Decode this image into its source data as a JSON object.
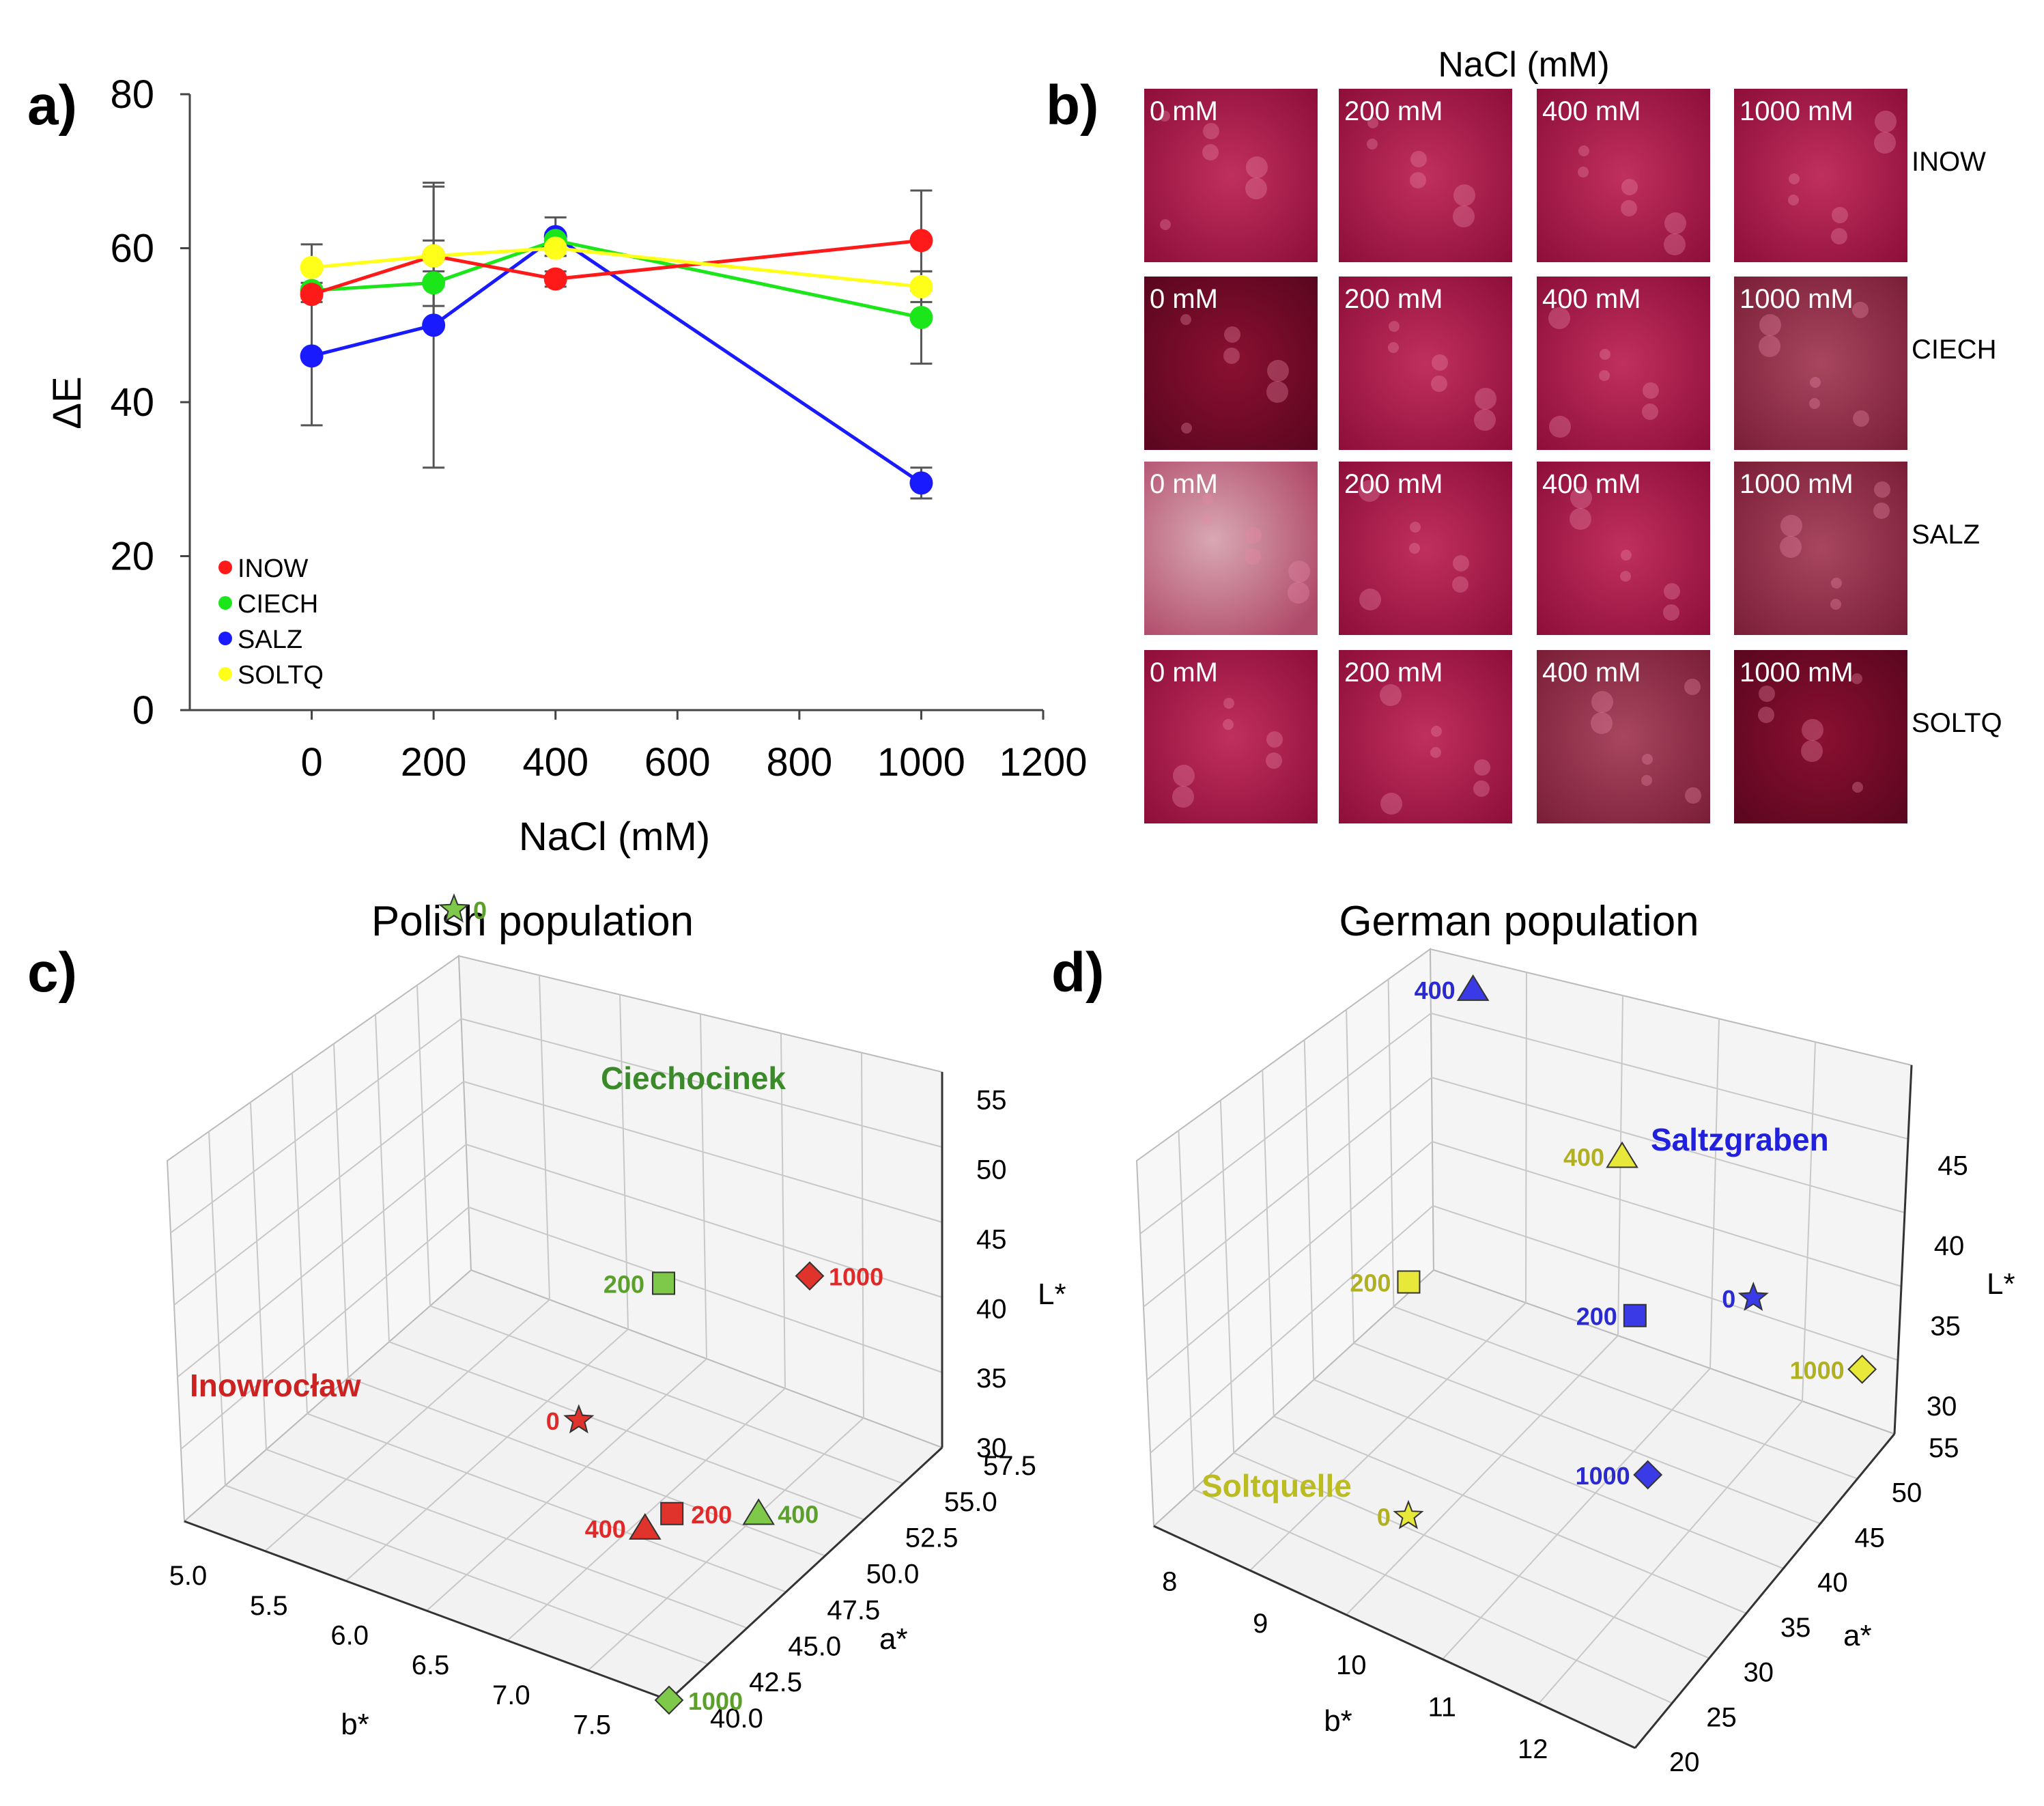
{
  "colors": {
    "INOW": "#ff1a1a",
    "CIECH": "#1ae61a",
    "SALZ": "#1a1aff",
    "SOLTQ": "#ffff1a",
    "tile_base": "#a8144a",
    "tile_light": "#d04a7a",
    "polish_red": "#e0332b",
    "polish_green": "#7ec84a",
    "german_blue": "#3a3ae6",
    "german_yellow": "#e8e83a"
  },
  "panels": {
    "a": {
      "label": "a)"
    },
    "b": {
      "label": "b)",
      "header": "NaCl (mM)",
      "columns": [
        "0 mM",
        "200 mM",
        "400 mM",
        "1000 mM"
      ],
      "rows": [
        "INOW",
        "CIECH",
        "SALZ",
        "SOLTQ"
      ]
    },
    "c": {
      "label": "c)"
    },
    "d": {
      "label": "d)"
    }
  },
  "chart_data": [
    {
      "id": "a",
      "type": "line",
      "title": "",
      "xlabel": "NaCl (mM)",
      "ylabel": "ΔE",
      "xlim": [
        -200,
        1200
      ],
      "ylim": [
        0,
        80
      ],
      "xticks": [
        "0",
        "200",
        "400",
        "600",
        "800",
        "1000",
        "1200"
      ],
      "yticks": [
        "0",
        "20",
        "40",
        "60",
        "80"
      ],
      "x": [
        0,
        200,
        400,
        1000
      ],
      "legend_position": "bottom-left",
      "series": [
        {
          "name": "INOW",
          "values": [
            54,
            59,
            56,
            61
          ],
          "errors": [
            1,
            2,
            1,
            6.5
          ]
        },
        {
          "name": "CIECH",
          "values": [
            54.5,
            55.5,
            61,
            51
          ],
          "errors": [
            1,
            3,
            1,
            6
          ]
        },
        {
          "name": "SALZ",
          "values": [
            46,
            50,
            61.5,
            29.5
          ],
          "errors": [
            9,
            18.5,
            2.5,
            2
          ]
        },
        {
          "name": "SOLTQ",
          "values": [
            57.5,
            59,
            60,
            55
          ],
          "errors": [
            3,
            9,
            1,
            2
          ]
        }
      ]
    },
    {
      "id": "c",
      "type": "scatter",
      "title": "Polish population",
      "xlabel": "b*",
      "ylabel": "a*",
      "zlabel": "L*",
      "xticks": [
        "5.0",
        "5.5",
        "6.0",
        "6.5",
        "7.0",
        "7.5"
      ],
      "yticks": [
        "40.0",
        "42.5",
        "45.0",
        "47.5",
        "50.0",
        "52.5",
        "55.0",
        "57.5"
      ],
      "zticks": [
        "30",
        "35",
        "40",
        "45",
        "50",
        "55"
      ],
      "group_labels": [
        {
          "text": "Ciechocinek",
          "color": "#3a8a2a"
        },
        {
          "text": "Inowrocław",
          "color": "#cc2222"
        }
      ],
      "points": [
        {
          "label": "0",
          "group": "Ciechocinek",
          "marker": "star",
          "b": 5.0,
          "a": 57.5,
          "L": 55
        },
        {
          "label": "200",
          "group": "Ciechocinek",
          "marker": "square",
          "b": 6.5,
          "a": 52.0,
          "L": 42
        },
        {
          "label": "400",
          "group": "Ciechocinek",
          "marker": "triangle",
          "b": 7.3,
          "a": 48.0,
          "L": 34
        },
        {
          "label": "1000",
          "group": "Ciechocinek",
          "marker": "diamond",
          "b": 7.5,
          "a": 40.0,
          "L": 30
        },
        {
          "label": "0",
          "group": "Inowrocław",
          "marker": "star",
          "b": 6.2,
          "a": 50.0,
          "L": 33
        },
        {
          "label": "200",
          "group": "Inowrocław",
          "marker": "square",
          "b": 6.8,
          "a": 48.5,
          "L": 31
        },
        {
          "label": "400",
          "group": "Inowrocław",
          "marker": "triangle",
          "b": 6.7,
          "a": 48.0,
          "L": 30
        },
        {
          "label": "1000",
          "group": "Inowrocław",
          "marker": "diamond",
          "b": 7.0,
          "a": 55.0,
          "L": 42
        }
      ]
    },
    {
      "id": "d",
      "type": "scatter",
      "title": "German population",
      "xlabel": "b*",
      "ylabel": "a*",
      "zlabel": "L*",
      "xticks": [
        "8",
        "9",
        "10",
        "11",
        "12"
      ],
      "yticks": [
        "20",
        "25",
        "30",
        "35",
        "40",
        "45",
        "50",
        "55"
      ],
      "zticks": [
        "30",
        "35",
        "40",
        "45"
      ],
      "group_labels": [
        {
          "text": "Saltzgraben",
          "color": "#2020dd"
        },
        {
          "text": "Soltquelle",
          "color": "#bbbb22"
        }
      ],
      "points": [
        {
          "label": "400",
          "group": "Saltzgraben",
          "marker": "triangle",
          "b": 8.5,
          "a": 50,
          "L": 46
        },
        {
          "label": "0",
          "group": "Saltzgraben",
          "marker": "star",
          "b": 11.5,
          "a": 48,
          "L": 38
        },
        {
          "label": "200",
          "group": "Saltzgraben",
          "marker": "square",
          "b": 10.5,
          "a": 45,
          "L": 36
        },
        {
          "label": "1000",
          "group": "Saltzgraben",
          "marker": "diamond",
          "b": 11.0,
          "a": 40,
          "L": 31
        },
        {
          "label": "400",
          "group": "Soltquelle",
          "marker": "triangle",
          "b": 10.0,
          "a": 50,
          "L": 41
        },
        {
          "label": "200",
          "group": "Soltquelle",
          "marker": "square",
          "b": 9.0,
          "a": 35,
          "L": 38
        },
        {
          "label": "1000",
          "group": "Soltquelle",
          "marker": "diamond",
          "b": 12.0,
          "a": 55,
          "L": 33
        },
        {
          "label": "0",
          "group": "Soltquelle",
          "marker": "star",
          "b": 9.5,
          "a": 28,
          "L": 30
        }
      ]
    }
  ]
}
